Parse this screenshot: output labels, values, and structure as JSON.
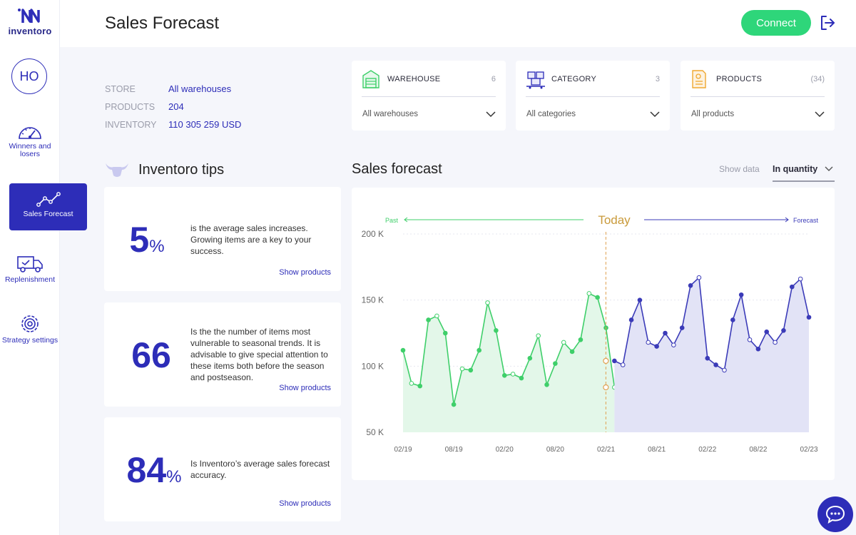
{
  "app": {
    "logo_text": "inventoro"
  },
  "sidebar": {
    "avatar_initials": "HO",
    "items": [
      {
        "label": "Winners and losers",
        "icon": "gauge-icon"
      },
      {
        "label": "Sales Forecast",
        "icon": "line-chart-icon",
        "active": true
      },
      {
        "label": "Replenishment",
        "icon": "truck-icon"
      },
      {
        "label": "Strategy settings",
        "icon": "gear-icon"
      }
    ]
  },
  "header": {
    "title": "Sales Forecast",
    "connect_label": "Connect"
  },
  "store": {
    "store_label": "STORE",
    "store_value": "All warehouses",
    "products_label": "PRODUCTS",
    "products_value": "204",
    "inventory_label": "INVENTORY",
    "inventory_value": "110 305 259 USD"
  },
  "filters": [
    {
      "name": "WAREHOUSE",
      "count": "6",
      "value": "All warehouses",
      "icon": "warehouse-icon"
    },
    {
      "name": "CATEGORY",
      "count": "3",
      "value": "All categories",
      "icon": "boxes-icon"
    },
    {
      "name": "PRODUCTS",
      "count": "(34)",
      "value": "All products",
      "icon": "document-icon"
    }
  ],
  "tips": {
    "title": "Inventoro tips",
    "items": [
      {
        "number": "5",
        "suffix": "%",
        "text": "is the average sales increases. Growing items are a key to your success.",
        "link": "Show products"
      },
      {
        "number": "66",
        "suffix": "",
        "text": "Is the the number of items most vulnerable to seasonal trends. It is advisable to give special attention to these items both before the season and postseason.",
        "link": "Show products"
      },
      {
        "number": "84",
        "suffix": "%",
        "text": "Is Inventoro’s average sales forecast accuracy.",
        "link": "Show products"
      }
    ]
  },
  "chart_panel": {
    "title": "Sales forecast",
    "show_data_label": "Show data",
    "show_data_value": "In quantity"
  },
  "chart_data": {
    "type": "area",
    "past_label": "Past",
    "today_label": "Today",
    "forecast_label": "Forecast",
    "y_ticks": [
      "200  K",
      "150  K",
      "100  K",
      "50  K"
    ],
    "ylim": [
      50,
      200
    ],
    "x_ticks": [
      {
        "label": "02/19",
        "index": 0
      },
      {
        "label": "08/19",
        "index": 6
      },
      {
        "label": "02/20",
        "index": 12
      },
      {
        "label": "08/20",
        "index": 18
      },
      {
        "label": "02/21",
        "index": 24
      },
      {
        "label": "08/21",
        "index": 30
      },
      {
        "label": "02/22",
        "index": 36
      },
      {
        "label": "08/22",
        "index": 42
      },
      {
        "label": "02/23",
        "index": 48
      }
    ],
    "today_index": 25,
    "series": [
      {
        "name": "Past",
        "color": "#3fcf6a",
        "start_index": 0,
        "values": [
          112,
          87,
          85,
          135,
          138,
          125,
          71,
          98,
          97,
          112,
          148,
          127,
          93,
          94,
          91,
          106,
          123,
          86,
          102,
          118,
          111,
          120,
          155,
          152,
          129,
          84
        ]
      },
      {
        "name": "Forecast",
        "color": "#3b3bb8",
        "start_index": 25,
        "values": [
          104,
          101,
          135,
          150,
          118,
          115,
          125,
          116,
          129,
          161,
          167,
          106,
          101,
          97,
          135,
          154,
          120,
          113,
          126,
          118,
          127,
          160,
          166,
          137
        ]
      }
    ]
  }
}
